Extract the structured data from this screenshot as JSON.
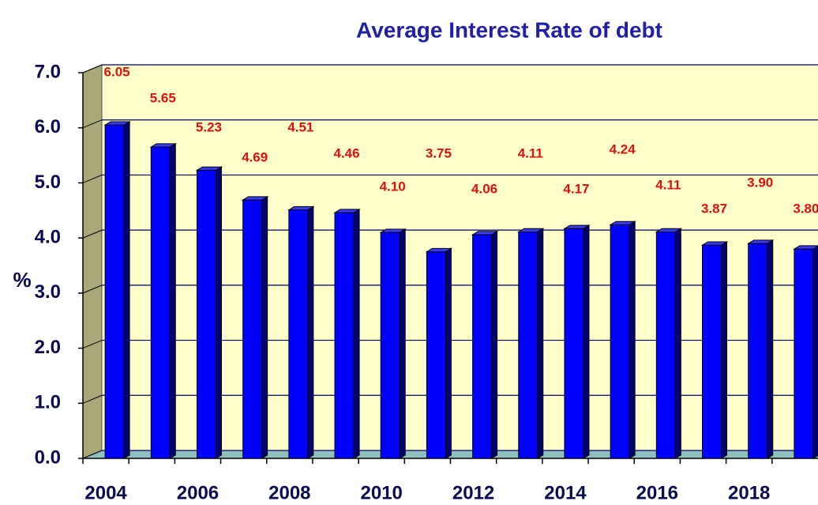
{
  "chart_data": {
    "type": "bar",
    "title": "Average Interest Rate of debt",
    "y_label": "%",
    "categories": [
      "2004",
      null,
      "2006",
      null,
      "2008",
      null,
      "2010",
      null,
      "2012",
      null,
      "2014",
      null,
      "2016",
      null,
      "2018",
      null
    ],
    "values": [
      6.05,
      5.65,
      5.23,
      4.69,
      4.51,
      4.46,
      4.1,
      3.75,
      4.06,
      4.11,
      4.17,
      4.24,
      4.11,
      3.87,
      3.9,
      3.8
    ],
    "value_labels": [
      "6.05",
      "5.65",
      "5.23",
      "4.69",
      "4.51",
      "4.46",
      "4.10",
      "3.75",
      "4.06",
      "4.11",
      "4.17",
      "4.24",
      "4.11",
      "3.87",
      "3.90",
      "3.80"
    ],
    "color": "#0000ff",
    "ylim": [
      0,
      7
    ],
    "yticks": [
      {
        "value": 0,
        "label": "0.0"
      },
      {
        "value": 1,
        "label": "1.0"
      },
      {
        "value": 2,
        "label": "2.0"
      },
      {
        "value": 3,
        "label": "3.0"
      },
      {
        "value": 4,
        "label": "4.0"
      },
      {
        "value": 5,
        "label": "5.0"
      },
      {
        "value": 6,
        "label": "6.0"
      },
      {
        "value": 7,
        "label": "7.0"
      }
    ],
    "grid": true
  }
}
